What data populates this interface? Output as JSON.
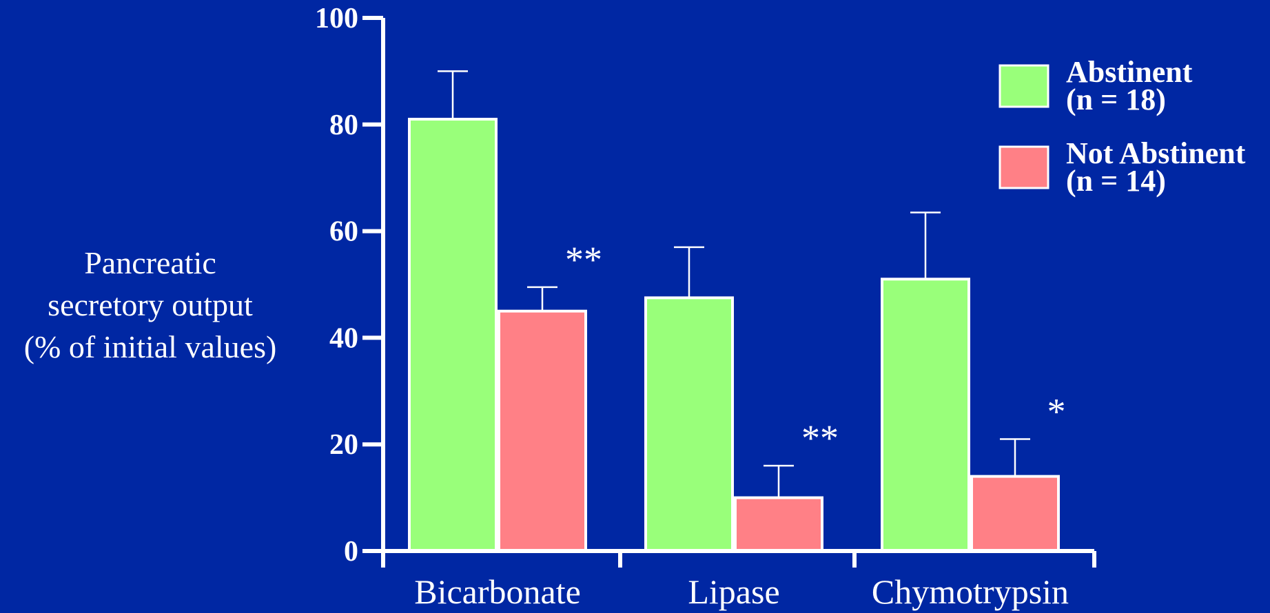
{
  "colors": {
    "background": "#0027a3",
    "axis": "#ffffff",
    "abstinent": "#99ff7a",
    "not_abstinent": "#ff8086"
  },
  "chart_data": {
    "type": "bar",
    "ylabel_lines": [
      "Pancreatic",
      "secretory output",
      "(% of initial values)"
    ],
    "ylim": [
      0,
      100
    ],
    "yticks": [
      "0",
      "20",
      "40",
      "60",
      "80",
      "100"
    ],
    "categories": [
      "Bicarbonate",
      "Lipase",
      "Chymotrypsin"
    ],
    "series": [
      {
        "name_lines": [
          "Abstinent",
          "(n = 18)"
        ],
        "color": "#99ff7a",
        "values": [
          81,
          47.5,
          51
        ],
        "error": [
          9,
          9.5,
          12.5
        ],
        "significance": [
          "",
          "",
          ""
        ]
      },
      {
        "name_lines": [
          "Not Abstinent",
          "(n = 14)"
        ],
        "color": "#ff8086",
        "values": [
          45,
          10,
          14
        ],
        "error": [
          4.5,
          6,
          7
        ],
        "significance": [
          "**",
          "**",
          "*"
        ]
      }
    ],
    "grid": false,
    "legend_position": "top-right"
  }
}
